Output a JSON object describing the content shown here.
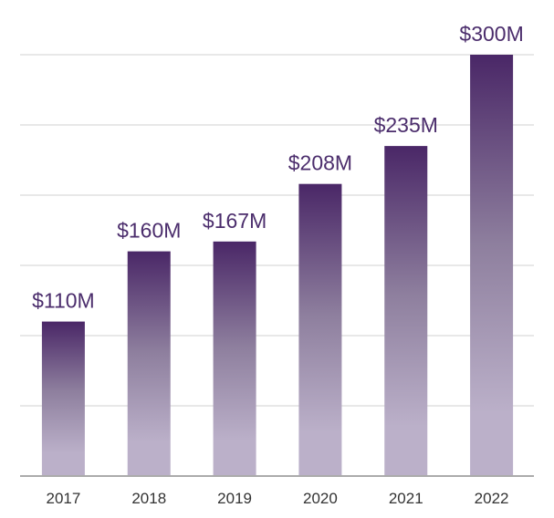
{
  "chart_data": {
    "type": "bar",
    "categories": [
      "2017",
      "2018",
      "2019",
      "2020",
      "2021",
      "2022"
    ],
    "values": [
      110,
      160,
      167,
      208,
      235,
      300
    ],
    "data_labels": [
      "$110M",
      "$160M",
      "$167M",
      "$208M",
      "$235M",
      "$300M"
    ],
    "title": "",
    "xlabel": "",
    "ylabel": "",
    "ylim": [
      0,
      300
    ],
    "grid_step": 50,
    "grid": true,
    "legend": "none",
    "colors": {
      "bar_top": "#4a2767",
      "bar_bottom": "#bbb0c9",
      "label": "#4b2d6c",
      "tick": "#333333",
      "grid": "#d0d0d0",
      "axis": "#ababab"
    }
  }
}
